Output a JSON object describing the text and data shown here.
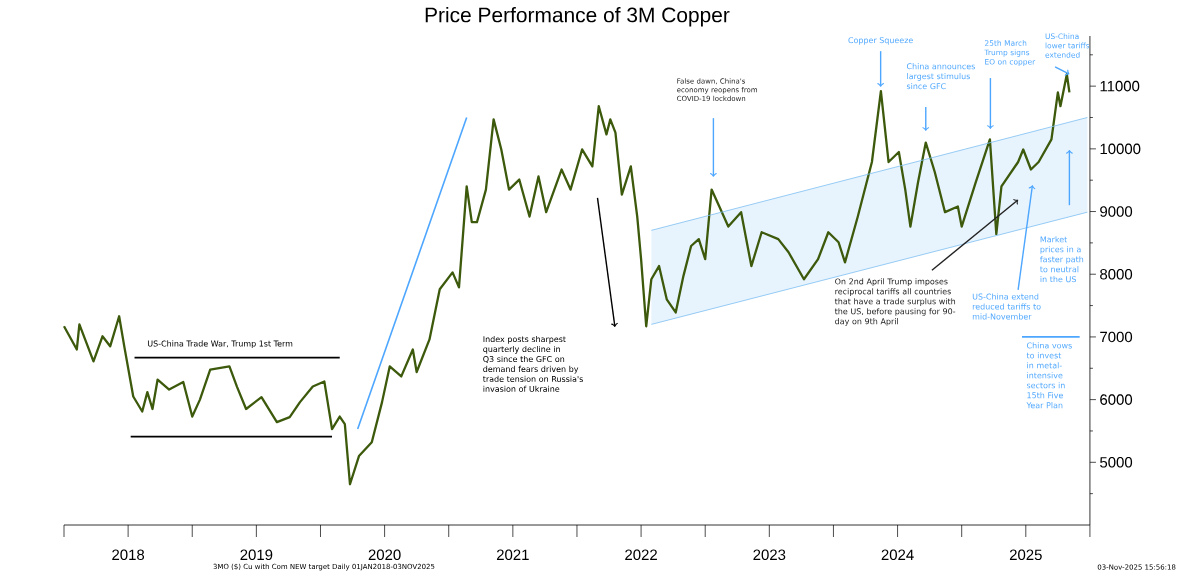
{
  "chart_data": {
    "type": "line",
    "title": "Price Performance of 3M Copper",
    "xlim": [
      2018,
      2026
    ],
    "ylim": [
      4000,
      11800
    ],
    "xticks": [
      {
        "value": 2018,
        "label": null
      },
      {
        "value": 2018.5,
        "label": "2018"
      },
      {
        "value": 2019,
        "label": null
      },
      {
        "value": 2019.5,
        "label": "2019"
      },
      {
        "value": 2020,
        "label": null
      },
      {
        "value": 2020.5,
        "label": "2020"
      },
      {
        "value": 2021,
        "label": null
      },
      {
        "value": 2021.5,
        "label": "2021"
      },
      {
        "value": 2022,
        "label": null
      },
      {
        "value": 2022.5,
        "label": "2022"
      },
      {
        "value": 2023,
        "label": null
      },
      {
        "value": 2023.5,
        "label": "2023"
      },
      {
        "value": 2024,
        "label": null
      },
      {
        "value": 2024.5,
        "label": "2024"
      },
      {
        "value": 2025,
        "label": null
      },
      {
        "value": 2025.5,
        "label": "2025"
      },
      {
        "value": 2026,
        "label": null
      }
    ],
    "yticks": [
      {
        "value": 4500,
        "label": null
      },
      5000,
      {
        "value": 5500,
        "label": null
      },
      6000,
      {
        "value": 6500,
        "label": null
      },
      7000,
      {
        "value": 7500,
        "label": null
      },
      8000,
      {
        "value": 8500,
        "label": null
      },
      9000,
      {
        "value": 9500,
        "label": null
      },
      10000,
      {
        "value": 10500,
        "label": null
      },
      11000,
      {
        "value": 11500,
        "label": null
      }
    ],
    "series": [
      {
        "color": "#3d5a0c",
        "x": [
          2018.0,
          2018.1,
          2018.12,
          2018.23,
          2018.3,
          2018.36,
          2018.43,
          2018.47,
          2018.54,
          2018.61,
          2018.65,
          2018.69,
          2018.73,
          2018.82,
          2018.93,
          2019.0,
          2019.06,
          2019.14,
          2019.29,
          2019.35,
          2019.42,
          2019.54,
          2019.66,
          2019.76,
          2019.84,
          2019.94,
          2020.03,
          2020.09,
          2020.15,
          2020.19,
          2020.23,
          2020.3,
          2020.4,
          2020.48,
          2020.54,
          2020.63,
          2020.72,
          2020.75,
          2020.85,
          2020.93,
          2021.03,
          2021.08,
          2021.14,
          2021.18,
          2021.22,
          2021.29,
          2021.35,
          2021.41,
          2021.47,
          2021.55,
          2021.63,
          2021.7,
          2021.76,
          2021.88,
          2021.95,
          2022.04,
          2022.12,
          2022.17,
          2022.23,
          2022.26,
          2022.3,
          2022.35,
          2022.42,
          2022.47,
          2022.5,
          2022.54,
          2022.58,
          2022.64,
          2022.7,
          2022.77,
          2022.83,
          2022.89,
          2022.95,
          2023.0,
          2023.05,
          2023.11,
          2023.18,
          2023.28,
          2023.36,
          2023.44,
          2023.57,
          2023.65,
          2023.77,
          2023.88,
          2023.96,
          2024.04,
          2024.09,
          2024.19,
          2024.3,
          2024.37,
          2024.43,
          2024.51,
          2024.56,
          2024.6,
          2024.66,
          2024.72,
          2024.79,
          2024.87,
          2024.97,
          2025.0,
          2025.11,
          2025.22,
          2025.27,
          2025.31,
          2025.44,
          2025.48,
          2025.54,
          2025.6,
          2025.7,
          2025.75,
          2025.77,
          2025.82,
          2025.84
        ],
        "values": [
          7170,
          6800,
          7200,
          6610,
          7010,
          6850,
          7330,
          6850,
          6050,
          5810,
          6120,
          5850,
          6320,
          6160,
          6280,
          5730,
          6000,
          6480,
          6530,
          6200,
          5850,
          6040,
          5640,
          5720,
          5960,
          6210,
          6290,
          5530,
          5730,
          5610,
          4650,
          5100,
          5320,
          5960,
          6530,
          6370,
          6800,
          6440,
          6960,
          7760,
          8030,
          7790,
          9400,
          8830,
          8830,
          9350,
          10470,
          9990,
          9350,
          9510,
          8920,
          9560,
          8990,
          9670,
          9350,
          9990,
          9720,
          10680,
          10230,
          10470,
          10260,
          9270,
          9720,
          8920,
          8240,
          7170,
          7920,
          8130,
          7600,
          7390,
          7970,
          8450,
          8560,
          8240,
          9350,
          9080,
          8760,
          8990,
          8130,
          8670,
          8560,
          8350,
          7920,
          8240,
          8670,
          8510,
          8190,
          8920,
          9790,
          10920,
          9790,
          9950,
          9350,
          8760,
          9470,
          10100,
          9630,
          8990,
          9080,
          8760,
          9470,
          10150,
          8640,
          9400,
          9790,
          9990,
          9670,
          9790,
          10150,
          10900,
          10680,
          11190,
          10900
        ]
      },
      {
        "color": "#7dbff2",
        "x": [
          2022.58,
          2025.98
        ],
        "values": [
          7200,
          8990
        ]
      },
      {
        "color": "#7dbff2",
        "x": [
          2022.58,
          2025.98
        ],
        "values": [
          8700,
          10500
        ]
      },
      {
        "color": "#000000",
        "x": [
          2018.55,
          2020.15
        ],
        "values": [
          6670,
          6670
        ]
      },
      {
        "color": "#000000",
        "x": [
          2018.52,
          2020.09
        ],
        "values": [
          5410,
          5410
        ]
      },
      {
        "color": "#4da6ff",
        "x": [
          2020.29,
          2021.14
        ],
        "values": [
          5530,
          10500
        ]
      },
      {
        "color": "#4da6ff",
        "x": [
          2025.47,
          2025.92
        ],
        "values": [
          7000,
          7000
        ]
      }
    ],
    "annotations": [
      "US-China Trade War, Trump 1st Term",
      "Index posts sharpest quarterly decline in Q3 since the GFC on demand fears driven by trade tension on Russia's invasion of Ukraine",
      "False dawn, China's economy reopens from COVID-19 lockdown",
      "Copper Squeeze",
      "China announces largest stimulus since GFC",
      "25th March Trump signs EO on copper",
      "US-China lower tariffs extended",
      "On 2nd April Trump imposes reciprocal tariffs all countries that have a trade surplus with the US, before pausing for 90-day on 9th April",
      "US-China extend reduced tariffs to mid-November",
      "Market prices in a faster path to neutral in the US",
      "China vows to invest in metal-intensive sectors in 15th Five Year Plan",
      "3MO ($) Cu with Com NEW target Daily 01JAN2018-03NOV2025",
      "03-Nov-2025 15:56:18"
    ]
  }
}
